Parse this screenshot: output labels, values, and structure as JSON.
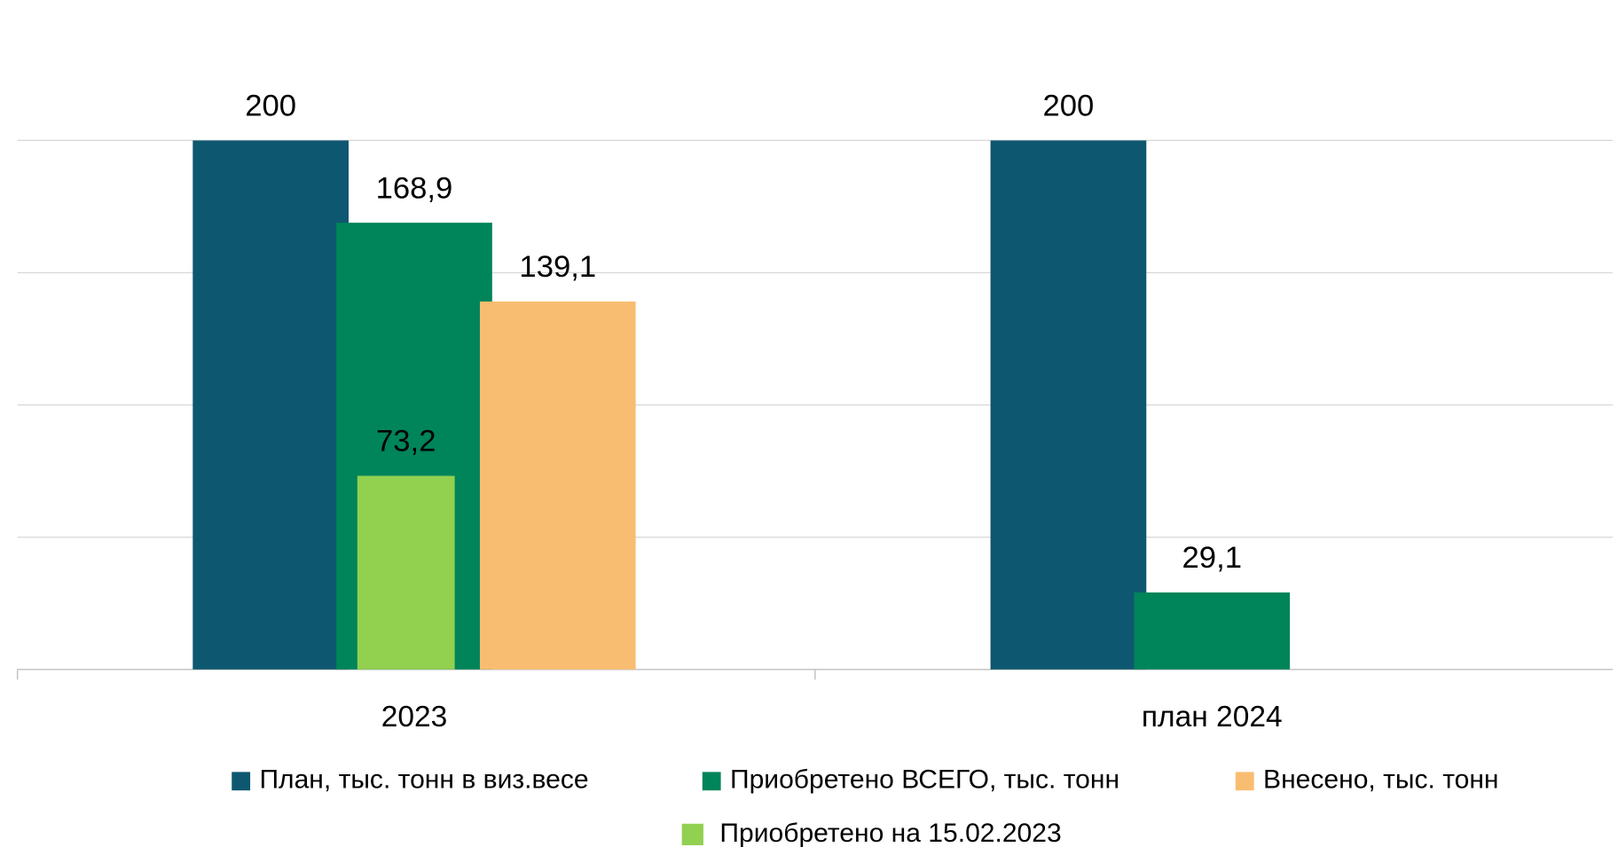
{
  "chart_data": {
    "type": "bar",
    "categories": [
      "2023",
      "план 2024"
    ],
    "series": [
      {
        "name": "План, тыс. тонн в виз.весе",
        "color": "#0e5770",
        "values": [
          200,
          200
        ],
        "value_labels": [
          "200",
          "200"
        ]
      },
      {
        "name": "Приобретено ВСЕГО, тыс. тонн",
        "color": "#00845a",
        "values": [
          168.9,
          29.1
        ],
        "value_labels": [
          "168,9",
          "29,1"
        ]
      },
      {
        "name": "Внесено, тыс. тонн",
        "color": "#f9bd71",
        "values": [
          139.1,
          null
        ],
        "value_labels": [
          "139,1",
          null
        ]
      },
      {
        "name": "Приобретено на 15.02.2023",
        "color": "#92d050",
        "values": [
          73.2,
          null
        ],
        "value_labels": [
          "73,2",
          null
        ]
      }
    ],
    "ylim": [
      0,
      200
    ],
    "yticks": [
      0,
      50,
      100,
      150,
      200
    ],
    "grid": true
  }
}
